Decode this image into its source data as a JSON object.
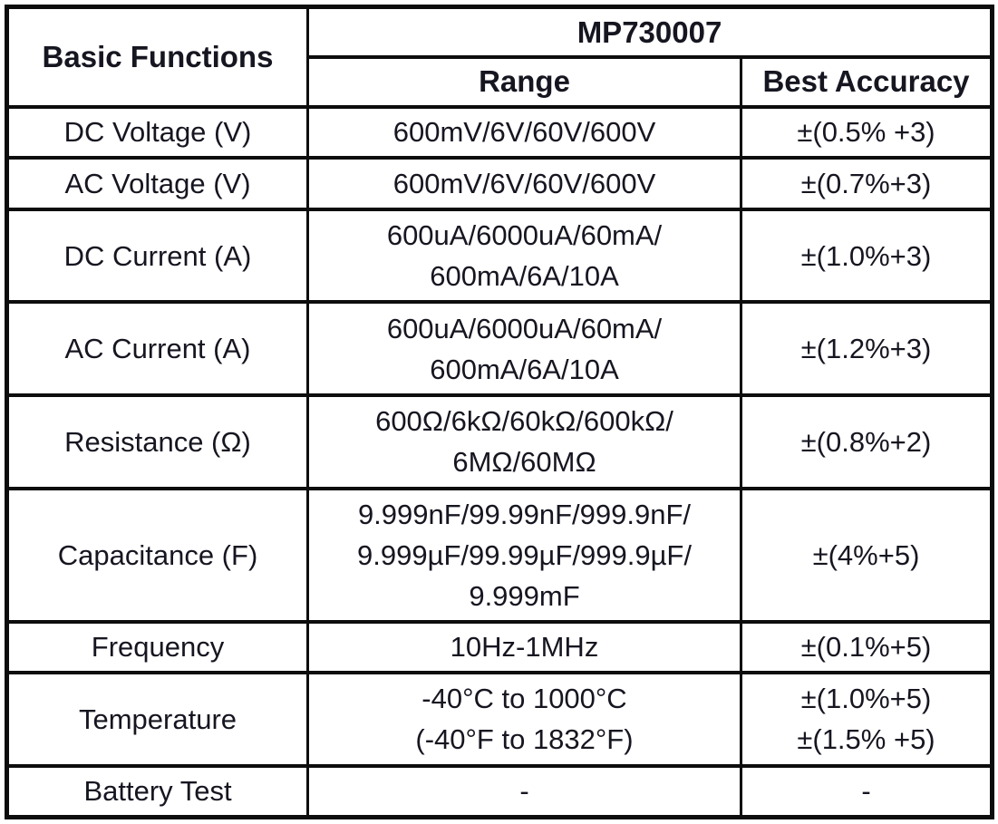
{
  "table": {
    "header": {
      "basic_functions": "Basic Functions",
      "model": "MP730007",
      "range": "Range",
      "best_accuracy": "Best Accuracy"
    },
    "rows": [
      {
        "function": "DC Voltage (V)",
        "range_lines": [
          "600mV/6V/60V/600V"
        ],
        "accuracy_lines": [
          "±(0.5% +3)"
        ]
      },
      {
        "function": "AC Voltage (V)",
        "range_lines": [
          "600mV/6V/60V/600V"
        ],
        "accuracy_lines": [
          "±(0.7%+3)"
        ]
      },
      {
        "function": "DC Current (A)",
        "range_lines": [
          "600uA/6000uA/60mA/",
          "600mA/6A/10A"
        ],
        "accuracy_lines": [
          "±(1.0%+3)"
        ]
      },
      {
        "function": "AC Current (A)",
        "range_lines": [
          "600uA/6000uA/60mA/",
          "600mA/6A/10A"
        ],
        "accuracy_lines": [
          "±(1.2%+3)"
        ]
      },
      {
        "function": "Resistance (Ω)",
        "range_lines": [
          "600Ω/6kΩ/60kΩ/600kΩ/",
          "6MΩ/60MΩ"
        ],
        "accuracy_lines": [
          "±(0.8%+2)"
        ]
      },
      {
        "function": "Capacitance (F)",
        "range_lines": [
          "9.999nF/99.99nF/999.9nF/",
          "9.999µF/99.99µF/999.9µF/",
          "9.999mF"
        ],
        "accuracy_lines": [
          "±(4%+5)"
        ]
      },
      {
        "function": "Frequency",
        "range_lines": [
          "10Hz-1MHz"
        ],
        "accuracy_lines": [
          "±(0.1%+5)"
        ]
      },
      {
        "function": "Temperature",
        "range_lines": [
          "-40°C to 1000°C",
          "(-40°F to 1832°F)"
        ],
        "accuracy_lines": [
          "±(1.0%+5)",
          "±(1.5% +5)"
        ]
      },
      {
        "function": "Battery Test",
        "range_lines": [
          "-"
        ],
        "accuracy_lines": [
          "-"
        ]
      }
    ],
    "colors": {
      "border": "#0d0d0d",
      "text": "#161621",
      "background": "#ffffff"
    }
  }
}
